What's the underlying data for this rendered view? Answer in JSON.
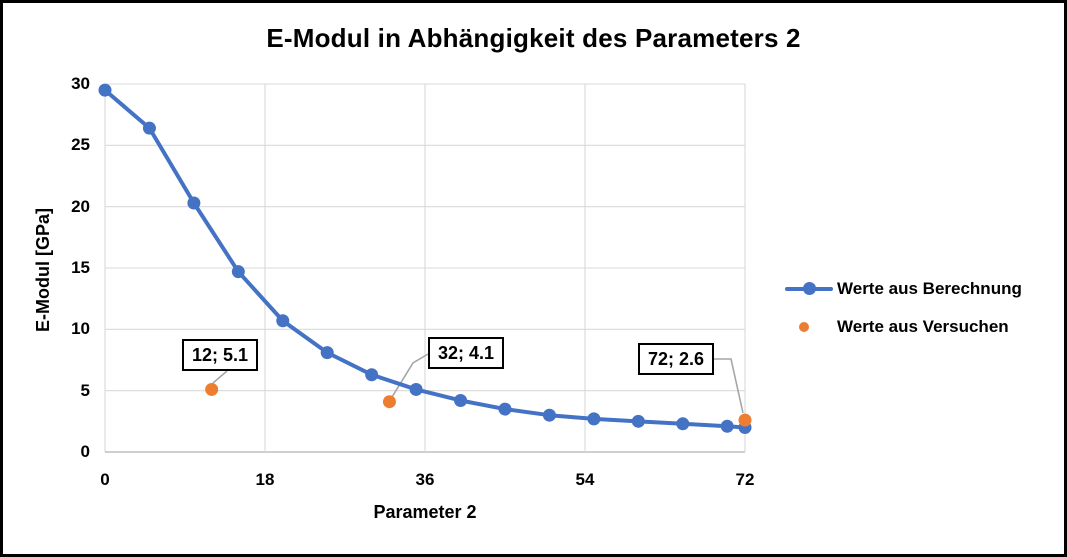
{
  "chart_data": {
    "type": "line",
    "title": "E-Modul in Abhängigkeit des Parameters 2",
    "xlabel": "Parameter 2",
    "ylabel": "E-Modul [GPa]",
    "xlim": [
      0,
      72
    ],
    "ylim": [
      0,
      30
    ],
    "x_ticks": [
      "0",
      "18",
      "36",
      "54",
      "72"
    ],
    "y_ticks": [
      "0",
      "5",
      "10",
      "15",
      "20",
      "25",
      "30"
    ],
    "grid": true,
    "legend_position": "right",
    "series": [
      {
        "name": "Werte aus Berechnung",
        "type": "line",
        "color": "#4472C4",
        "x": [
          0,
          5,
          10,
          15,
          20,
          25,
          30,
          35,
          40,
          45,
          50,
          55,
          60,
          65,
          70,
          72
        ],
        "y": [
          29.5,
          26.4,
          20.3,
          14.7,
          10.7,
          8.1,
          6.3,
          5.1,
          4.2,
          3.5,
          3.0,
          2.7,
          2.5,
          2.3,
          2.1,
          2.0
        ]
      },
      {
        "name": "Werte aus Versuchen",
        "type": "scatter",
        "color": "#ED7D31",
        "x": [
          12,
          32,
          72
        ],
        "y": [
          5.1,
          4.1,
          2.6
        ],
        "point_labels": [
          "12; 5.1",
          "32; 4.1",
          "72; 2.6"
        ]
      }
    ]
  },
  "legend": {
    "items": [
      {
        "label": "Werte aus Berechnung",
        "marker": "line-dot",
        "color": "#4472C4"
      },
      {
        "label": "Werte aus Versuchen",
        "marker": "dot",
        "color": "#ED7D31"
      }
    ]
  },
  "colors": {
    "background": "#FFFFFF",
    "frame_border": "#000000",
    "text": "#000000",
    "gridline": "#D9D9D9",
    "axis_line": "#BFBFBF",
    "leader_line": "#A6A6A6",
    "series_blue": "#4472C4",
    "series_orange": "#ED7D31",
    "callout_border": "#000000",
    "callout_fill": "#FFFFFF"
  }
}
